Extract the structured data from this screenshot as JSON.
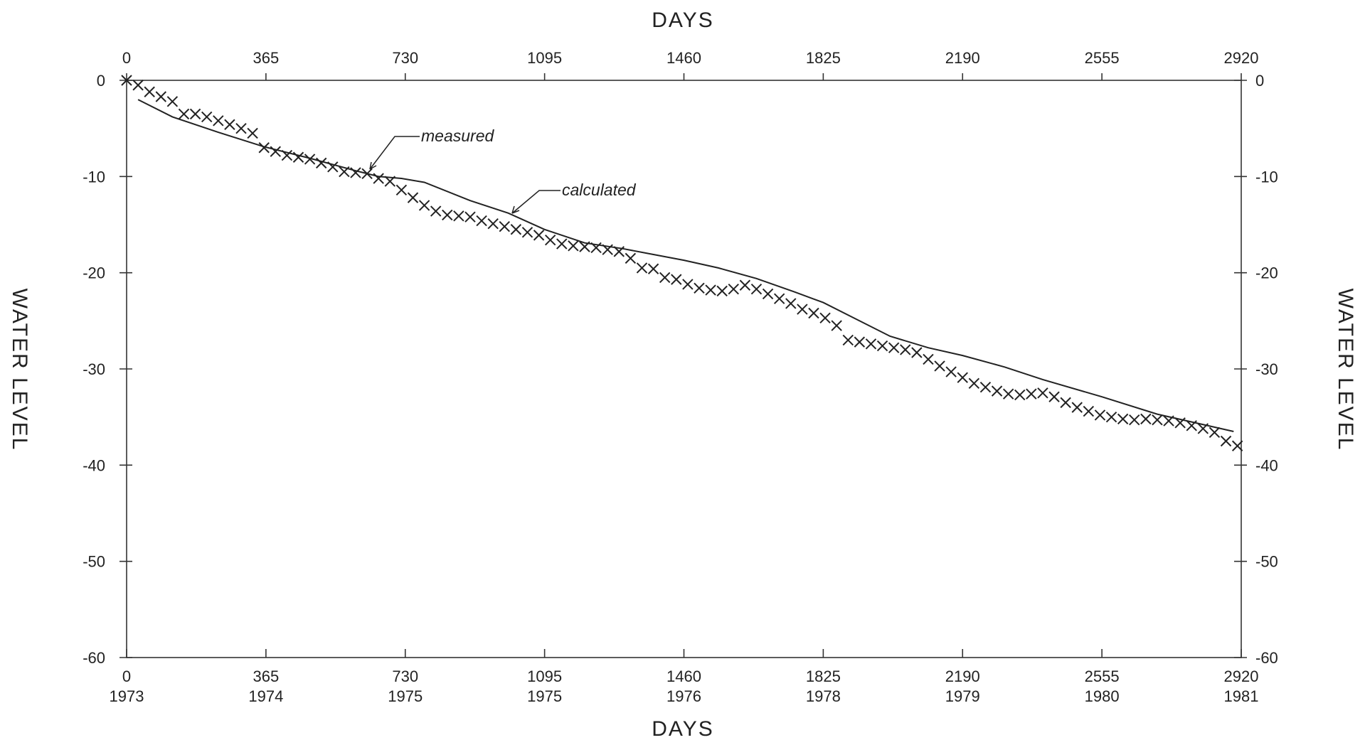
{
  "chart_data": {
    "type": "line",
    "x_axis_top": {
      "label": "DAYS",
      "ticks": [
        0,
        365,
        730,
        1095,
        1460,
        1825,
        2190,
        2555,
        2920
      ],
      "tick_labels": [
        "0",
        "365",
        "730",
        "1095",
        "1460",
        "1825",
        "2190",
        "2555",
        "2920"
      ]
    },
    "x_axis_bottom": {
      "label": "DAYS",
      "ticks": [
        0,
        365,
        730,
        1095,
        1460,
        1825,
        2190,
        2555,
        2920
      ],
      "tick_labels": [
        "0",
        "365",
        "730",
        "1095",
        "1460",
        "1825",
        "2190",
        "2555",
        "2920"
      ],
      "year_labels": [
        "1973",
        "1974",
        "1975",
        "1975",
        "1976",
        "1978",
        "1979",
        "1980",
        "1981"
      ]
    },
    "y_axis_left": {
      "label": "WATER LEVEL",
      "ticks": [
        0,
        -10,
        -20,
        -30,
        -40,
        -50,
        -60
      ],
      "tick_labels": [
        "0",
        "-10",
        "-20",
        "-30",
        "-40",
        "-50",
        "-60"
      ]
    },
    "y_axis_right": {
      "label": "WATER LEVEL",
      "ticks": [
        0,
        -10,
        -20,
        -30,
        -40,
        -50,
        -60
      ],
      "tick_labels": [
        "0",
        "-10",
        "-20",
        "-30",
        "-40",
        "-50",
        "-60"
      ]
    },
    "xlim": [
      0,
      2920
    ],
    "ylim": [
      -60,
      0
    ],
    "grid": false,
    "series": [
      {
        "name": "measured",
        "style": "markers-x",
        "x": [
          0,
          30,
          60,
          90,
          120,
          150,
          180,
          210,
          240,
          270,
          300,
          330,
          360,
          390,
          420,
          450,
          480,
          510,
          540,
          570,
          600,
          630,
          660,
          690,
          720,
          750,
          780,
          810,
          840,
          870,
          900,
          930,
          960,
          990,
          1020,
          1050,
          1080,
          1110,
          1140,
          1170,
          1200,
          1230,
          1260,
          1290,
          1320,
          1350,
          1380,
          1410,
          1440,
          1470,
          1500,
          1530,
          1560,
          1590,
          1620,
          1650,
          1680,
          1710,
          1740,
          1770,
          1800,
          1830,
          1860,
          1890,
          1920,
          1950,
          1980,
          2010,
          2040,
          2070,
          2100,
          2130,
          2160,
          2190,
          2220,
          2250,
          2280,
          2310,
          2340,
          2370,
          2400,
          2430,
          2460,
          2490,
          2520,
          2550,
          2580,
          2610,
          2640,
          2670,
          2700,
          2730,
          2760,
          2790,
          2820,
          2850,
          2880,
          2910
        ],
        "y": [
          0,
          -0.5,
          -1.2,
          -1.7,
          -2.2,
          -3.5,
          -3.5,
          -3.8,
          -4.2,
          -4.6,
          -5.0,
          -5.5,
          -7.0,
          -7.4,
          -7.8,
          -8.0,
          -8.2,
          -8.6,
          -9.0,
          -9.5,
          -9.6,
          -9.7,
          -10.2,
          -10.5,
          -11.4,
          -12.2,
          -13.0,
          -13.6,
          -14.0,
          -14.1,
          -14.2,
          -14.6,
          -14.9,
          -15.2,
          -15.5,
          -15.8,
          -16.1,
          -16.6,
          -17.0,
          -17.2,
          -17.3,
          -17.4,
          -17.6,
          -17.8,
          -18.5,
          -19.5,
          -19.6,
          -20.5,
          -20.7,
          -21.2,
          -21.6,
          -21.8,
          -21.9,
          -21.7,
          -21.3,
          -21.7,
          -22.2,
          -22.7,
          -23.2,
          -23.8,
          -24.2,
          -24.7,
          -25.5,
          -27.0,
          -27.2,
          -27.4,
          -27.6,
          -27.8,
          -28.0,
          -28.3,
          -29.0,
          -29.7,
          -30.3,
          -30.9,
          -31.5,
          -31.9,
          -32.3,
          -32.6,
          -32.7,
          -32.6,
          -32.5,
          -32.9,
          -33.5,
          -34.0,
          -34.4,
          -34.8,
          -35.0,
          -35.2,
          -35.3,
          -35.2,
          -35.3,
          -35.4,
          -35.6,
          -35.9,
          -36.2,
          -36.6,
          -37.5,
          -38.0
        ]
      },
      {
        "name": "calculated",
        "style": "line",
        "x": [
          30,
          120,
          240,
          360,
          480,
          600,
          660,
          720,
          780,
          900,
          1000,
          1095,
          1200,
          1300,
          1380,
          1460,
          1550,
          1650,
          1750,
          1825,
          1900,
          2000,
          2100,
          2190,
          2300,
          2400,
          2555,
          2700,
          2900
        ],
        "y": [
          -2.0,
          -3.8,
          -5.4,
          -6.9,
          -8.1,
          -9.4,
          -10.0,
          -10.2,
          -10.6,
          -12.5,
          -13.8,
          -15.5,
          -16.9,
          -17.5,
          -18.1,
          -18.7,
          -19.5,
          -20.6,
          -22.0,
          -23.1,
          -24.6,
          -26.6,
          -27.8,
          -28.6,
          -29.8,
          -31.1,
          -32.9,
          -34.7,
          -36.5
        ]
      }
    ],
    "annotations": [
      {
        "text": "measured",
        "series": "measured"
      },
      {
        "text": "calculated",
        "series": "calculated"
      }
    ]
  }
}
